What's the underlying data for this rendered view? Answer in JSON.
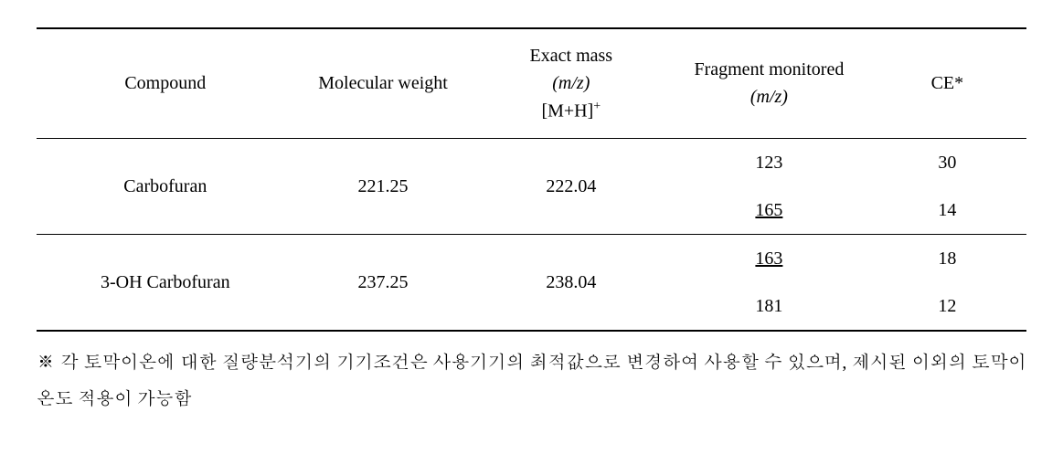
{
  "headers": {
    "compound": "Compound",
    "mw": "Molecular weight",
    "exactmass_l1": "Exact mass",
    "exactmass_l2": "(m/z)",
    "exactmass_l3": "[M+H]",
    "exactmass_sup": "+",
    "fragment_l1": "Fragment monitored",
    "fragment_l2": "(m/z)",
    "ce": "CE*"
  },
  "rows": [
    {
      "compound": "Carbofuran",
      "mw": "221.25",
      "exact": "222.04",
      "frag1": "123",
      "frag1_underline": false,
      "ce1": "30",
      "frag2": "165",
      "frag2_underline": true,
      "ce2": "14"
    },
    {
      "compound": "3-OH Carbofuran",
      "mw": "237.25",
      "exact": "238.04",
      "frag1": "163",
      "frag1_underline": true,
      "ce1": "18",
      "frag2": "181",
      "frag2_underline": false,
      "ce2": "12"
    }
  ],
  "note": "※ 각 토막이온에 대한 질량분석기의 기기조건은 사용기기의 최적값으로 변경하여 사용할 수 있으며, 제시된 이외의 토막이온도 적용이 가능함"
}
